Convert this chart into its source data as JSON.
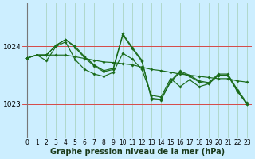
{
  "background_color": "#cceeff",
  "grid_color": "#aaddcc",
  "line_color": "#1a6b1a",
  "marker_color": "#1a6b1a",
  "xlabel": "Graphe pression niveau de la mer (hPa)",
  "ylabel_ticks": [
    1023,
    1024
  ],
  "xlim": [
    -0.5,
    23.5
  ],
  "ylim": [
    1022.4,
    1024.75
  ],
  "xtick_labels": [
    "0",
    "1",
    "2",
    "3",
    "4",
    "5",
    "6",
    "7",
    "8",
    "9",
    "10",
    "11",
    "12",
    "13",
    "14",
    "15",
    "16",
    "17",
    "18",
    "19",
    "20",
    "21",
    "22",
    "23"
  ],
  "xtick_fontsize": 5.5,
  "ytick_fontsize": 6.5,
  "xlabel_fontsize": 7,
  "xlabel_fontweight": "bold",
  "series": [
    [
      1023.8,
      1023.85,
      1023.85,
      1023.85,
      1023.85,
      1023.82,
      1023.79,
      1023.76,
      1023.73,
      1023.72,
      1023.7,
      1023.68,
      1023.64,
      1023.6,
      1023.58,
      1023.55,
      1023.52,
      1023.5,
      1023.48,
      1023.46,
      1023.44,
      1023.44,
      1023.4,
      1023.38
    ],
    [
      1023.8,
      1023.85,
      1023.85,
      1024.02,
      1024.12,
      1024.0,
      1023.82,
      1023.68,
      1023.58,
      1023.62,
      1024.22,
      1023.98,
      1023.76,
      1023.08,
      1023.07,
      1023.38,
      1023.55,
      1023.48,
      1023.38,
      1023.35,
      1023.5,
      1023.5,
      1023.22,
      1023.0
    ],
    [
      1023.8,
      1023.85,
      1023.85,
      1024.02,
      1024.12,
      1023.98,
      1023.8,
      1023.66,
      1023.56,
      1023.6,
      1024.2,
      1023.96,
      1023.74,
      1023.1,
      1023.08,
      1023.4,
      1023.57,
      1023.5,
      1023.4,
      1023.37,
      1023.52,
      1023.52,
      1023.25,
      1023.02
    ],
    [
      1023.8,
      1023.85,
      1023.75,
      1024.0,
      1024.08,
      1023.77,
      1023.6,
      1023.52,
      1023.48,
      1023.55,
      1023.88,
      1023.78,
      1023.6,
      1023.15,
      1023.12,
      1023.44,
      1023.3,
      1023.42,
      1023.3,
      1023.35,
      1023.5,
      1023.5,
      1023.22,
      1023.0
    ]
  ]
}
